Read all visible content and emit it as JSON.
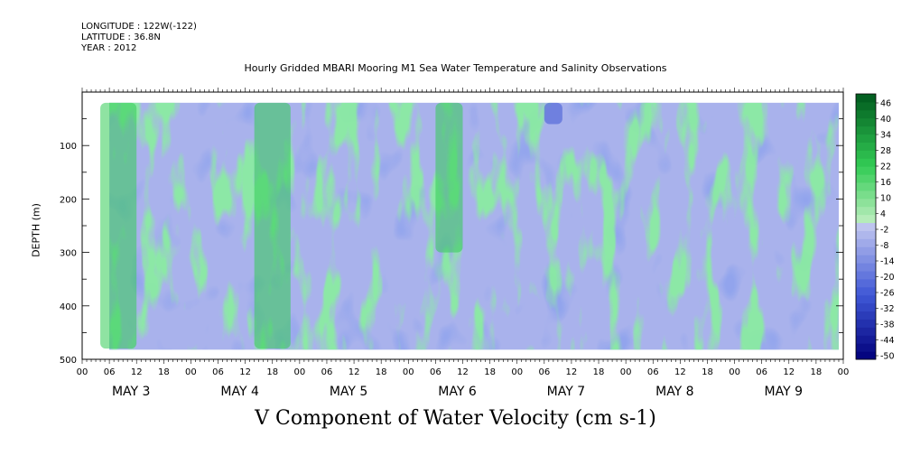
{
  "header": {
    "longitude": "LONGITUDE : 122W(-122)",
    "latitude": "LATITUDE : 36.8N",
    "year": "YEAR : 2012"
  },
  "chart_data": {
    "type": "heatmap",
    "title": "Hourly Gridded MBARI Mooring M1 Sea Water Temperature and Salinity Observations",
    "caption": "V Component of Water Velocity (cm s-1)",
    "ylabel": "DEPTH (m)",
    "y_range": [
      0,
      500
    ],
    "y_inverted": true,
    "y_ticks": [
      100,
      200,
      300,
      400,
      500
    ],
    "x_hour_ticks": [
      "00",
      "06",
      "12",
      "18",
      "00",
      "06",
      "12",
      "18",
      "00",
      "06",
      "12",
      "18",
      "00",
      "06",
      "12",
      "18",
      "00",
      "06",
      "12",
      "18",
      "00",
      "06",
      "12",
      "18",
      "00",
      "06",
      "12",
      "18",
      "00"
    ],
    "x_dates": [
      "MAY 3",
      "MAY 4",
      "MAY 5",
      "MAY 6",
      "MAY 7",
      "MAY 8",
      "MAY 9"
    ],
    "x_range_hours": [
      0,
      168
    ],
    "colorbar": {
      "labels": [
        "46",
        "40",
        "34",
        "28",
        "22",
        "16",
        "10",
        "4",
        "-2",
        "-8",
        "-14",
        "-20",
        "-26",
        "-32",
        "-38",
        "-44",
        "-50"
      ],
      "levels": [
        -50,
        -47,
        -44,
        -41,
        -38,
        -35,
        -32,
        -29,
        -26,
        -23,
        -20,
        -17,
        -14,
        -11,
        -8,
        -5,
        -2,
        1,
        4,
        7,
        10,
        13,
        16,
        19,
        22,
        25,
        28,
        31,
        34,
        37,
        40,
        43,
        46,
        49
      ],
      "colors": {
        "neg_dark": "#00007a",
        "neg_mid": "#3f57d6",
        "neg_light": "#c0c6ef",
        "pos_light": "#c6f0c6",
        "pos_mid": "#33cc55",
        "pos_dark": "#005a1e"
      }
    },
    "dominant_features": [
      {
        "day": "MAY 3",
        "hours": [
          4,
          12
        ],
        "sign": "positive",
        "depth": [
          20,
          480
        ]
      },
      {
        "day": "MAY 4",
        "hours": [
          14,
          22
        ],
        "sign": "positive",
        "depth": [
          20,
          480
        ]
      },
      {
        "day": "MAY 6",
        "hours": [
          6,
          12
        ],
        "sign": "positive",
        "depth": [
          20,
          300
        ]
      },
      {
        "day": "MAY 7",
        "hours": [
          6,
          10
        ],
        "sign": "negative",
        "depth": [
          20,
          60
        ]
      }
    ]
  }
}
